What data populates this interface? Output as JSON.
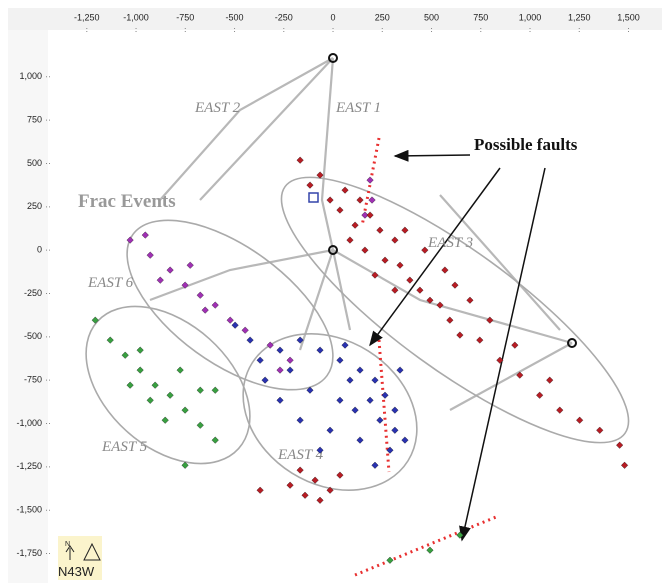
{
  "chart_data": {
    "type": "scatter",
    "xlim": [
      -1650,
      1670
    ],
    "ylim": [
      -1920,
      1270
    ],
    "xticks": [
      {
        "value": -1250,
        "label": "-1,250"
      },
      {
        "value": -1000,
        "label": "-1,000"
      },
      -750,
      -500,
      -250,
      0,
      250,
      500,
      750,
      {
        "value": 1000,
        "label": "1,000"
      },
      {
        "value": 1250,
        "label": "1,250"
      },
      {
        "value": 1500,
        "label": "1,500"
      }
    ],
    "yticks": [
      {
        "value": 1000,
        "label": "1,000"
      },
      750,
      500,
      250,
      0,
      -250,
      -500,
      -750,
      {
        "value": -1000,
        "label": "-1,000"
      },
      {
        "value": -1250,
        "label": "-1,250"
      },
      {
        "value": -1500,
        "label": "-1,500"
      },
      {
        "value": -1750,
        "label": "-1,750"
      }
    ],
    "annotations": [
      "EAST 2",
      "EAST 1",
      "EAST 3",
      "EAST 6",
      "EAST 5",
      "EAST 4",
      "Frac Events",
      "Possible faults"
    ],
    "north": "N",
    "orientation": "N43W",
    "series": [
      {
        "color": "#b81c24",
        "x": [
          -167,
          -66,
          61,
          137,
          188,
          35,
          112,
          238,
          314,
          162,
          264,
          340,
          390,
          441,
          492,
          543,
          213,
          314,
          593,
          644,
          745,
          847,
          948,
          1049,
          1151,
          1252,
          1354,
          1455,
          1480,
          695,
          619,
          796,
          -117,
          -15,
          86,
          466,
          568,
          923,
          1100,
          365,
          -167,
          -91,
          -15,
          -66,
          -142,
          35,
          -218,
          -370
        ],
        "y": [
          519,
          433,
          346,
          289,
          202,
          231,
          144,
          115,
          58,
          0,
          -58,
          -87,
          -173,
          -231,
          -289,
          -317,
          -144,
          -231,
          -404,
          -490,
          -519,
          -635,
          -721,
          -837,
          -923,
          -981,
          -1039,
          -1125,
          -1241,
          -289,
          -202,
          -404,
          375,
          289,
          58,
          0,
          -115,
          -548,
          -750,
          115,
          -1269,
          -1327,
          -1385,
          -1443,
          -1414,
          -1298,
          -1356,
          -1385
        ]
      },
      {
        "color": "#2a32b0",
        "x": [
          -370,
          -269,
          -167,
          -66,
          35,
          137,
          213,
          264,
          188,
          112,
          238,
          314,
          289,
          137,
          -15,
          -167,
          -269,
          -345,
          -117,
          35,
          86,
          314,
          340,
          -421,
          -497,
          -218,
          -66,
          213,
          365,
          61
        ],
        "y": [
          -635,
          -577,
          -519,
          -577,
          -635,
          -692,
          -750,
          -837,
          -866,
          -923,
          -981,
          -1039,
          -1154,
          -1096,
          -1039,
          -981,
          -866,
          -750,
          -808,
          -866,
          -750,
          -923,
          -692,
          -519,
          -433,
          -692,
          -1154,
          -1241,
          -1096,
          -548
        ]
      },
      {
        "color": "#38a040",
        "x": [
          -1207,
          -1131,
          -1055,
          -979,
          -903,
          -827,
          -751,
          -674,
          -598,
          -776,
          -928,
          -852,
          -1030,
          -674,
          -751,
          -598,
          -979,
          289,
          492,
          644
        ],
        "y": [
          -404,
          -519,
          -606,
          -692,
          -779,
          -837,
          -923,
          -1010,
          -1096,
          -692,
          -866,
          -981,
          -779,
          -808,
          -1241,
          -808,
          -577,
          -1789,
          -1731,
          -1644
        ]
      },
      {
        "color": "#a030b4",
        "x": [
          -1030,
          -928,
          -827,
          -751,
          -674,
          -598,
          -522,
          -877,
          -725,
          -649,
          -953,
          -446,
          -319,
          -218,
          188,
          198,
          162,
          -269
        ],
        "y": [
          58,
          -29,
          -115,
          -202,
          -260,
          -317,
          -404,
          -173,
          -87,
          -346,
          87,
          -462,
          -548,
          -635,
          404,
          289,
          202,
          -692
        ]
      }
    ]
  }
}
